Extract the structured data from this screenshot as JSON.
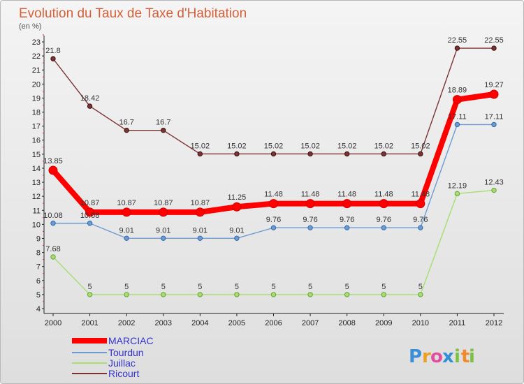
{
  "chart_data": {
    "type": "line",
    "title": "Evolution du Taux de Taxe d'Habitation",
    "subtitle": "(en %)",
    "categories": [
      "2000",
      "2001",
      "2002",
      "2003",
      "2004",
      "2005",
      "2006",
      "2007",
      "2008",
      "2009",
      "2010",
      "2011",
      "2012"
    ],
    "ylim": [
      4,
      23
    ],
    "yticks": [
      4,
      5,
      6,
      7,
      8,
      9,
      10,
      11,
      12,
      13,
      14,
      15,
      16,
      17,
      18,
      19,
      20,
      21,
      22,
      23
    ],
    "grid": false,
    "legend_position": "bottom-left",
    "series": [
      {
        "name": "MARCIAC",
        "color": "#ff0000",
        "values": [
          13.85,
          10.87,
          10.87,
          10.87,
          10.87,
          11.25,
          11.48,
          11.48,
          11.48,
          11.48,
          11.48,
          18.89,
          19.27
        ],
        "labels": [
          "13.85",
          "10.87",
          "10.87",
          "10.87",
          "10.87",
          "11.25",
          "11.48",
          "11.48",
          "11.48",
          "11.48",
          "11.48",
          "18.89",
          "19.27"
        ]
      },
      {
        "name": "Tourdun",
        "color": "#6b9bd1",
        "values": [
          10.08,
          10.08,
          9.01,
          9.01,
          9.01,
          9.01,
          9.76,
          9.76,
          9.76,
          9.76,
          9.76,
          17.11,
          17.11
        ],
        "labels": [
          "10.08",
          "10.08",
          "9.01",
          "9.01",
          "9.01",
          "9.01",
          "9.76",
          "9.76",
          "9.76",
          "9.76",
          "9.76",
          "17.11",
          "17.11"
        ]
      },
      {
        "name": "Juillac",
        "color": "#a6de6f",
        "values": [
          7.68,
          5,
          5,
          5,
          5,
          5,
          5,
          5,
          5,
          5,
          5,
          12.19,
          12.43
        ],
        "labels": [
          "7.68",
          "5",
          "5",
          "5",
          "5",
          "5",
          "5",
          "5",
          "5",
          "5",
          "5",
          "12.19",
          "12.43"
        ]
      },
      {
        "name": "Ricourt",
        "color": "#7a3333",
        "values": [
          21.8,
          18.42,
          16.7,
          16.7,
          15.02,
          15.02,
          15.02,
          15.02,
          15.02,
          15.02,
          15.02,
          22.55,
          22.55
        ],
        "labels": [
          "21.8",
          "18.42",
          "16.7",
          "16.7",
          "15.02",
          "15.02",
          "15.02",
          "15.02",
          "15.02",
          "15.02",
          "15.02",
          "22.55",
          "22.55"
        ]
      }
    ]
  },
  "branding": {
    "logo_letters": [
      "P",
      "r",
      "o",
      "x",
      "i",
      "t",
      "i"
    ],
    "logo_colors": [
      "#3a8fd6",
      "#f0a020",
      "#e04f9c",
      "#2f8fd8",
      "#7bc043",
      "#f08a2a",
      "#7bc043"
    ]
  }
}
